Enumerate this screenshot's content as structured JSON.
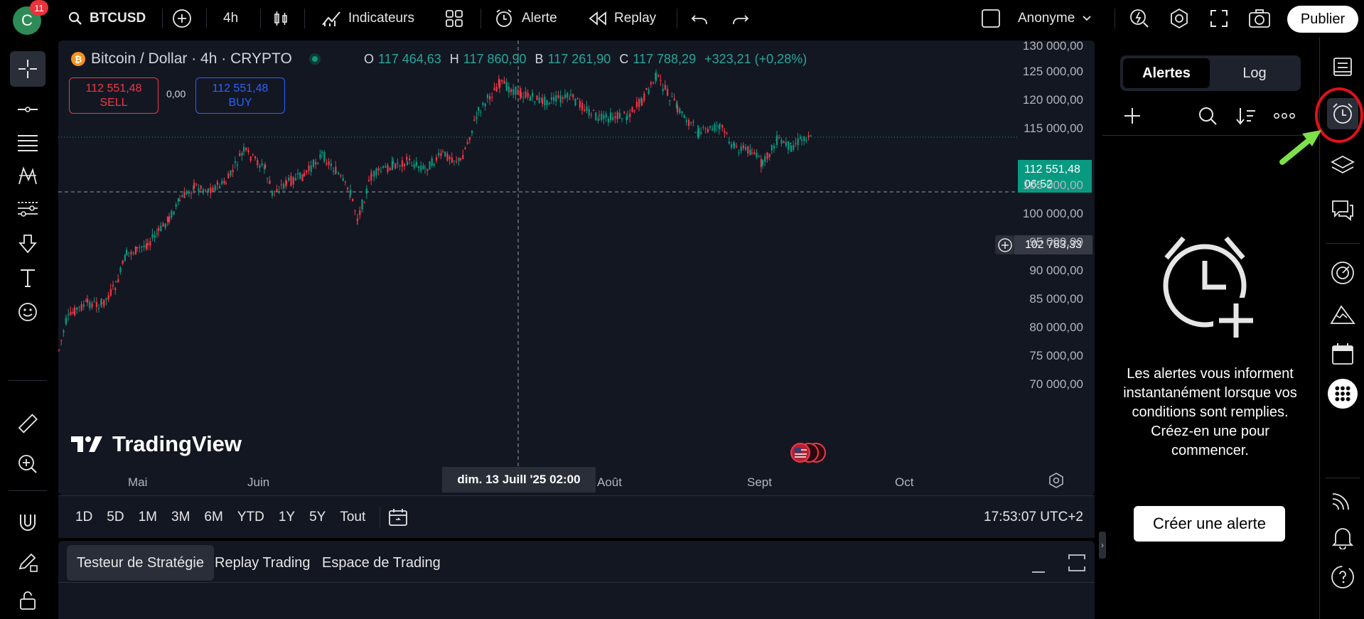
{
  "topbar": {
    "avatar_letter": "C",
    "notification_count": "11",
    "symbol": "BTCUSD",
    "interval": "4h",
    "indicators_label": "Indicateurs",
    "alert_label": "Alerte",
    "replay_label": "Replay",
    "layout_name": "Anonyme",
    "publish_label": "Publier"
  },
  "chart": {
    "symbol_description": "Bitcoin / Dollar · 4h · CRYPTO",
    "ohlc": {
      "o_key": "O",
      "o": "117 464,63",
      "h_key": "H",
      "h": "117 860,90",
      "b_key": "B",
      "b": "117 261,90",
      "c_key": "C",
      "c": "117 788,29",
      "change": "+323,21 (+0,28%)"
    },
    "sell": {
      "price": "112 551,48",
      "label": "SELL"
    },
    "buy": {
      "price": "112 551,48",
      "label": "BUY"
    },
    "spread": "0,00",
    "logo_text": "TradingView",
    "price_axis": [
      "130 000,00",
      "125 000,00",
      "120 000,00",
      "115 000,00",
      "105 000,00",
      "100 000,00",
      "95 000,00",
      "90 000,00",
      "85 000,00",
      "80 000,00",
      "75 000,00",
      "70 000,00"
    ],
    "last_price": "112 551,48",
    "countdown": "06:52",
    "crosshair_price": "102 783,33",
    "crosshair_date": "dim. 13 Juill '25   02:00",
    "time_axis": [
      "Mai",
      "Juin",
      "Août",
      "Sept",
      "Oct"
    ],
    "ranges": [
      "1D",
      "5D",
      "1M",
      "3M",
      "6M",
      "YTD",
      "1Y",
      "5Y",
      "Tout"
    ],
    "clock": "17:53:07 UTC+2"
  },
  "bottom_tabs": [
    "Testeur de Stratégie",
    "Replay Trading",
    "Espace de Trading"
  ],
  "alerts_panel": {
    "tab_alerts": "Alertes",
    "tab_log": "Log",
    "empty_text": "Les alertes vous informent instantanément lorsque vos conditions sont remplies. Créez-en une pour commencer.",
    "create_button": "Créer une alerte"
  },
  "colors": {
    "up": "#089981",
    "down": "#f23645",
    "accent": "#2962ff",
    "highlight_circle": "#e0111b",
    "arrow": "#7ee04a"
  }
}
